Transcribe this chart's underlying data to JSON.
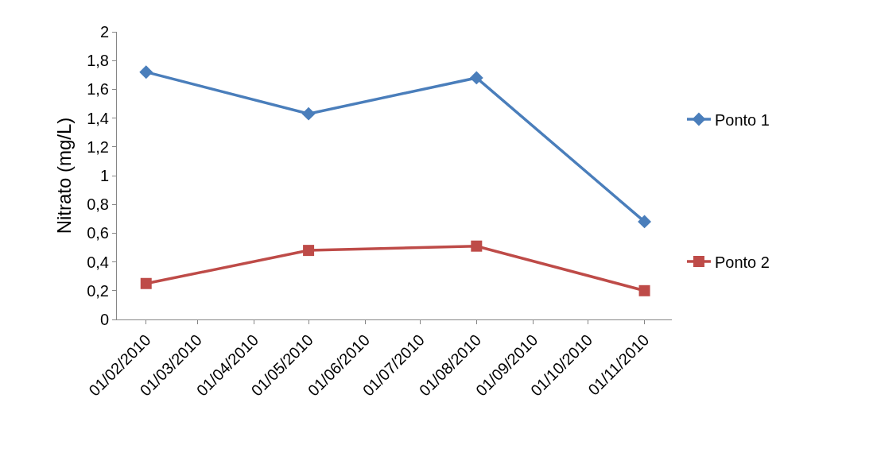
{
  "chart_data": {
    "type": "line",
    "ylabel": "Nitrato (mg/L)",
    "x": [
      "2010-02-01",
      "2010-05-01",
      "2010-08-01",
      "2010-11-01"
    ],
    "series": [
      {
        "name": "Ponto 1",
        "color": "#4a7ebb",
        "marker": "diamond",
        "values": [
          1.72,
          1.43,
          1.68,
          0.68
        ]
      },
      {
        "name": "Ponto 2",
        "color": "#be4b48",
        "marker": "square",
        "values": [
          0.25,
          0.48,
          0.51,
          0.2
        ]
      }
    ],
    "xlim": [
      "2010-01-16",
      "2010-11-16"
    ],
    "xticks": [
      {
        "value": "2010-02-01",
        "label": "01/02/2010"
      },
      {
        "value": "2010-03-01",
        "label": "01/03/2010"
      },
      {
        "value": "2010-04-01",
        "label": "01/04/2010"
      },
      {
        "value": "2010-05-01",
        "label": "01/05/2010"
      },
      {
        "value": "2010-06-01",
        "label": "01/06/2010"
      },
      {
        "value": "2010-07-01",
        "label": "01/07/2010"
      },
      {
        "value": "2010-08-01",
        "label": "01/08/2010"
      },
      {
        "value": "2010-09-01",
        "label": "01/09/2010"
      },
      {
        "value": "2010-10-01",
        "label": "01/10/2010"
      },
      {
        "value": "2010-11-01",
        "label": "01/11/2010"
      }
    ],
    "ylim": [
      0,
      2
    ],
    "yticks": [
      0,
      {
        "value": 0.2,
        "label": "0,2"
      },
      {
        "value": 0.4,
        "label": "0,4"
      },
      {
        "value": 0.6,
        "label": "0,6"
      },
      {
        "value": 0.8,
        "label": "0,8"
      },
      1,
      {
        "value": 1.2,
        "label": "1,2"
      },
      {
        "value": 1.4,
        "label": "1,4"
      },
      {
        "value": 1.6,
        "label": "1,6"
      },
      {
        "value": 1.8,
        "label": "1,8"
      },
      2
    ],
    "grid": false,
    "legend": "right",
    "line_style": "solid"
  }
}
